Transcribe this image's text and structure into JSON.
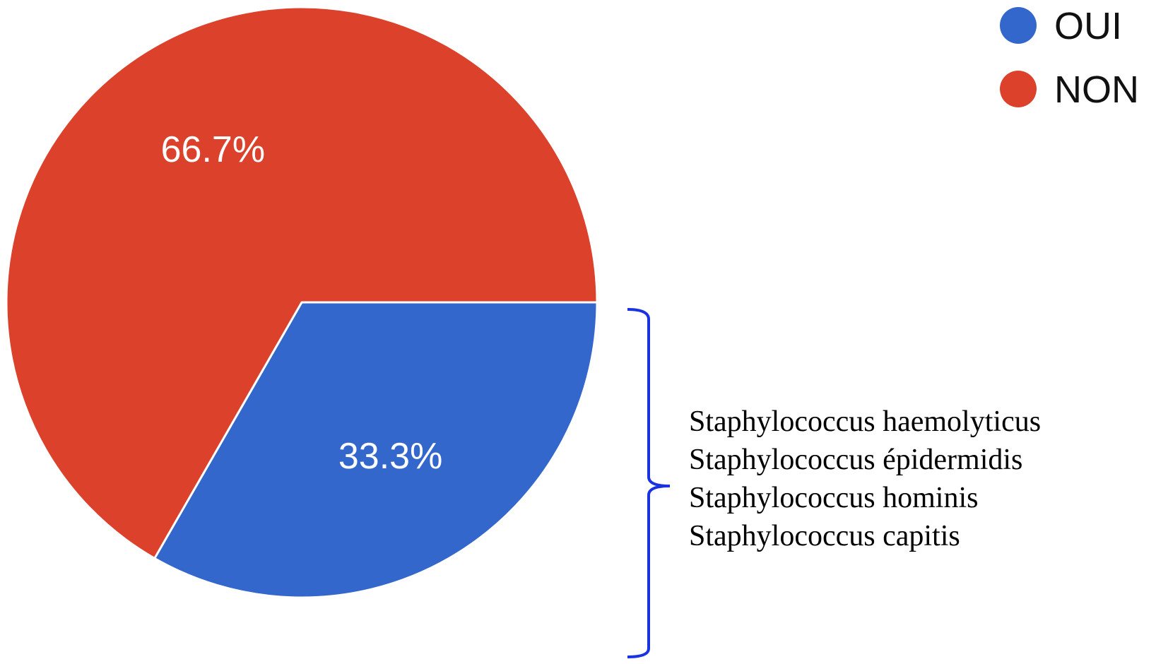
{
  "chart_data": {
    "type": "pie",
    "slices": [
      {
        "label": "NON",
        "value": 66.7,
        "display": "66.7%",
        "color": "#dc412c"
      },
      {
        "label": "OUI",
        "value": 33.3,
        "display": "33.3%",
        "color": "#3367cc"
      }
    ],
    "legend": {
      "position": "top-right",
      "entries": [
        {
          "label": "OUI",
          "color": "#3367cc"
        },
        {
          "label": "NON",
          "color": "#dc412c"
        }
      ]
    },
    "annotation": {
      "target": "OUI",
      "bracket_color": "#1a33e0",
      "lines": [
        "Staphylococcus haemolyticus",
        "Staphylococcus épidermidis",
        "Staphylococcus hominis",
        "Staphylococcus capitis"
      ]
    }
  }
}
